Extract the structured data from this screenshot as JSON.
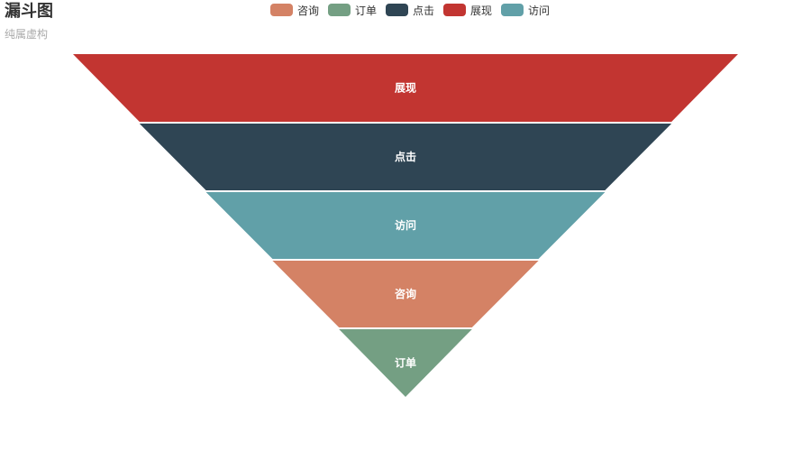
{
  "title": "漏斗图",
  "subtitle": "纯属虚构",
  "legend": [
    {
      "name": "咨询",
      "color": "#d48265"
    },
    {
      "name": "订单",
      "color": "#749f83"
    },
    {
      "name": "点击",
      "color": "#2f4554"
    },
    {
      "name": "展现",
      "color": "#c23531"
    },
    {
      "name": "访问",
      "color": "#61a0a8"
    }
  ],
  "chart_data": {
    "type": "funnel",
    "title": "漏斗图",
    "subtitle": "纯属虚构",
    "legend_placement": "top-center",
    "sort": "descending",
    "stages": [
      {
        "name": "展现",
        "value": 100,
        "color": "#c23531"
      },
      {
        "name": "点击",
        "value": 80,
        "color": "#2f4554"
      },
      {
        "name": "访问",
        "value": 60,
        "color": "#61a0a8"
      },
      {
        "name": "咨询",
        "value": 40,
        "color": "#d48265"
      },
      {
        "name": "订单",
        "value": 20,
        "color": "#749f83"
      }
    ],
    "min": 0,
    "max": 100
  }
}
